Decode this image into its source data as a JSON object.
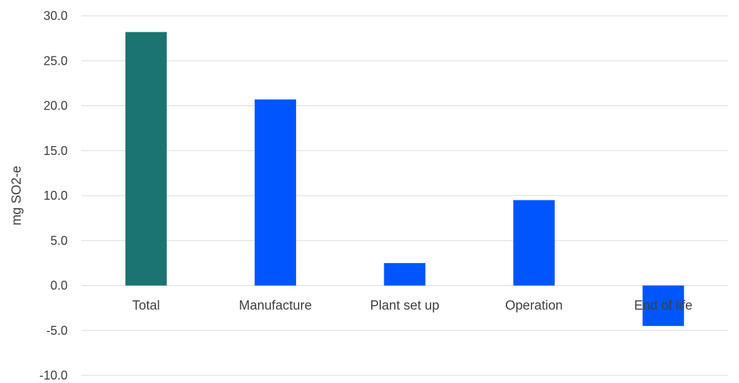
{
  "chart_data": {
    "type": "bar",
    "categories": [
      "Total",
      "Manufacture",
      "Plant set up",
      "Operation",
      "End of life"
    ],
    "values": [
      28.2,
      20.7,
      2.5,
      9.5,
      -4.5
    ],
    "bar_colors": [
      "#1b7470",
      "#0055ff",
      "#0055ff",
      "#0055ff",
      "#0055ff"
    ],
    "ylabel": "mg SO2-e",
    "ylim": [
      -10.0,
      30.0
    ],
    "yticks": [
      "30.0",
      "25.0",
      "20.0",
      "15.0",
      "10.0",
      "5.0",
      "0.0",
      "-5.0",
      "-10.0"
    ],
    "ytick_values": [
      30,
      25,
      20,
      15,
      10,
      5,
      0,
      -5,
      -10
    ],
    "grid": true,
    "gridline_color": "#d9d9d9",
    "label_color": "#404040"
  }
}
